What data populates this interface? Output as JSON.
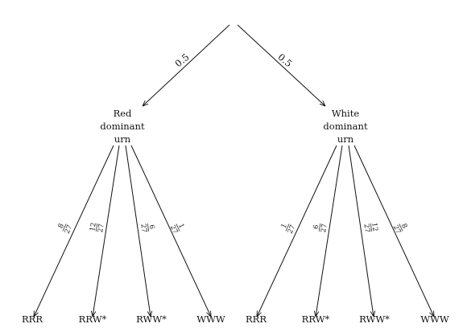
{
  "root": {
    "edges": [
      {
        "label": "0.5",
        "target": "red"
      },
      {
        "label": "0.5",
        "target": "white"
      }
    ]
  },
  "nodes": {
    "red": {
      "lines": [
        "Red",
        "dominant",
        "urn"
      ]
    },
    "white": {
      "lines": [
        "White",
        "dominant",
        "urn"
      ]
    }
  },
  "branches": {
    "red": [
      {
        "outcome": "RRR",
        "num": "8",
        "den": "27"
      },
      {
        "outcome": "RRW*",
        "num": "12",
        "den": "27"
      },
      {
        "outcome": "RWW*",
        "num": "6",
        "den": "27"
      },
      {
        "outcome": "WWW",
        "num": "1",
        "den": "27"
      }
    ],
    "white": [
      {
        "outcome": "RRR",
        "num": "1",
        "den": "27"
      },
      {
        "outcome": "RRW*",
        "num": "6",
        "den": "27"
      },
      {
        "outcome": "RWW*",
        "num": "12",
        "den": "27"
      },
      {
        "outcome": "WWW",
        "num": "8",
        "den": "27"
      }
    ]
  }
}
